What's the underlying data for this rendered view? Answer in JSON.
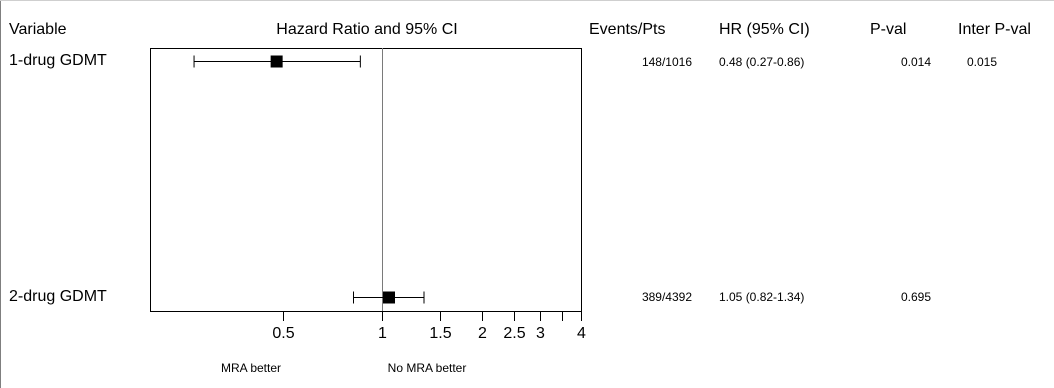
{
  "headers": {
    "variable": "Variable",
    "plot": "Hazard Ratio and 95% CI",
    "events": "Events/Pts",
    "hr": "HR (95% CI)",
    "pval": "P-val",
    "inter_pval": "Inter P-val"
  },
  "rows": [
    {
      "label": "1-drug GDMT",
      "events": "148/1016",
      "hr_ci": "0.48 (0.27-0.86)",
      "pval": "0.014",
      "inter_pval": "0.015"
    },
    {
      "label": "2-drug GDMT",
      "events": "389/4392",
      "hr_ci": "1.05 (0.82-1.34)",
      "pval": "0.695",
      "inter_pval": ""
    }
  ],
  "favor_labels": {
    "left": "MRA better",
    "right": "No MRA better"
  },
  "chart_data": {
    "type": "scatter",
    "subtype": "forest-plot",
    "title": "Hazard Ratio and 95% CI",
    "xlabel": "",
    "ylabel": "",
    "xscale": "log",
    "xlim": [
      0.2,
      4
    ],
    "reference_line": 1,
    "categories": [
      "1-drug GDMT",
      "2-drug GDMT"
    ],
    "points": [
      {
        "label": "1-drug GDMT",
        "hr": 0.48,
        "ci_low": 0.27,
        "ci_high": 0.86
      },
      {
        "label": "2-drug GDMT",
        "hr": 1.05,
        "ci_low": 0.82,
        "ci_high": 1.34
      }
    ],
    "major_ticks": [
      {
        "value": 0.5,
        "label": "0.5"
      },
      {
        "value": 1,
        "label": "1"
      },
      {
        "value": 1.5,
        "label": "1.5"
      },
      {
        "value": 2,
        "label": "2"
      },
      {
        "value": 2.5,
        "label": "2.5"
      },
      {
        "value": 3,
        "label": "3"
      },
      {
        "value": 4,
        "label": "4"
      }
    ],
    "minor_ticks": [
      3.5
    ],
    "grid": false,
    "legend": "none"
  }
}
